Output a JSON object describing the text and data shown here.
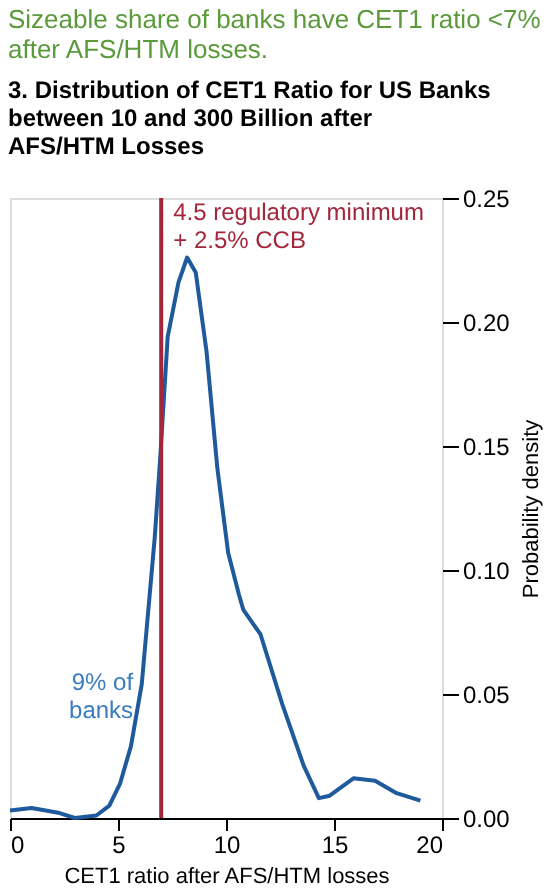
{
  "chart_data": {
    "type": "line",
    "title": "Sizeable share of banks have CET1 ratio <7%\nafter AFS/HTM losses.",
    "subtitle": "3. Distribution of CET1 Ratio for US Banks\nbetween 10 and 300 Billion after\nAFS/HTM Losses",
    "xlabel": "CET1 ratio after AFS/HTM losses",
    "ylabel": "Probability density",
    "x": [
      0,
      1.0,
      2.3,
      3.0,
      4.0,
      4.6,
      5.1,
      5.6,
      6.1,
      6.7,
      6.96,
      7.3,
      7.8,
      8.2,
      8.6,
      9.1,
      9.6,
      10.1,
      10.6,
      10.8,
      11.6,
      12.6,
      13.6,
      14.3,
      14.8,
      15.9,
      16.9,
      17.9,
      19.0
    ],
    "series": [
      {
        "color": "#1f5b9c",
        "values": [
          0.003,
          0.004,
          0.002,
          0,
          0.001,
          0.005,
          0.014,
          0.029,
          0.054,
          0.113,
          0.146,
          0.194,
          0.216,
          0.226,
          0.22,
          0.188,
          0.141,
          0.107,
          0.09,
          0.084,
          0.074,
          0.046,
          0.021,
          0.008,
          0.009,
          0.016,
          0.015,
          0.01,
          0.007
        ]
      }
    ],
    "xlim": [
      0,
      20
    ],
    "xticks": [
      0,
      5,
      10,
      15,
      20
    ],
    "ylim": [
      0,
      0.25
    ],
    "yticks": [
      {
        "value": 0,
        "label": "0.00"
      },
      0.05,
      {
        "value": 0.1,
        "label": "0.10"
      },
      0.15,
      {
        "value": 0.2,
        "label": "0.20"
      },
      0.25
    ],
    "ref_lines": [
      {
        "axis": "x",
        "value": 7,
        "label": "4.5 regulatory minimum\n+ 2.5% CCB",
        "color": "#a3263b"
      }
    ],
    "annotations": [
      {
        "text": "9% of\nbanks",
        "x": 5.7,
        "y": 0.055
      }
    ],
    "grid": false,
    "marker": "none",
    "line_style": "solid"
  }
}
